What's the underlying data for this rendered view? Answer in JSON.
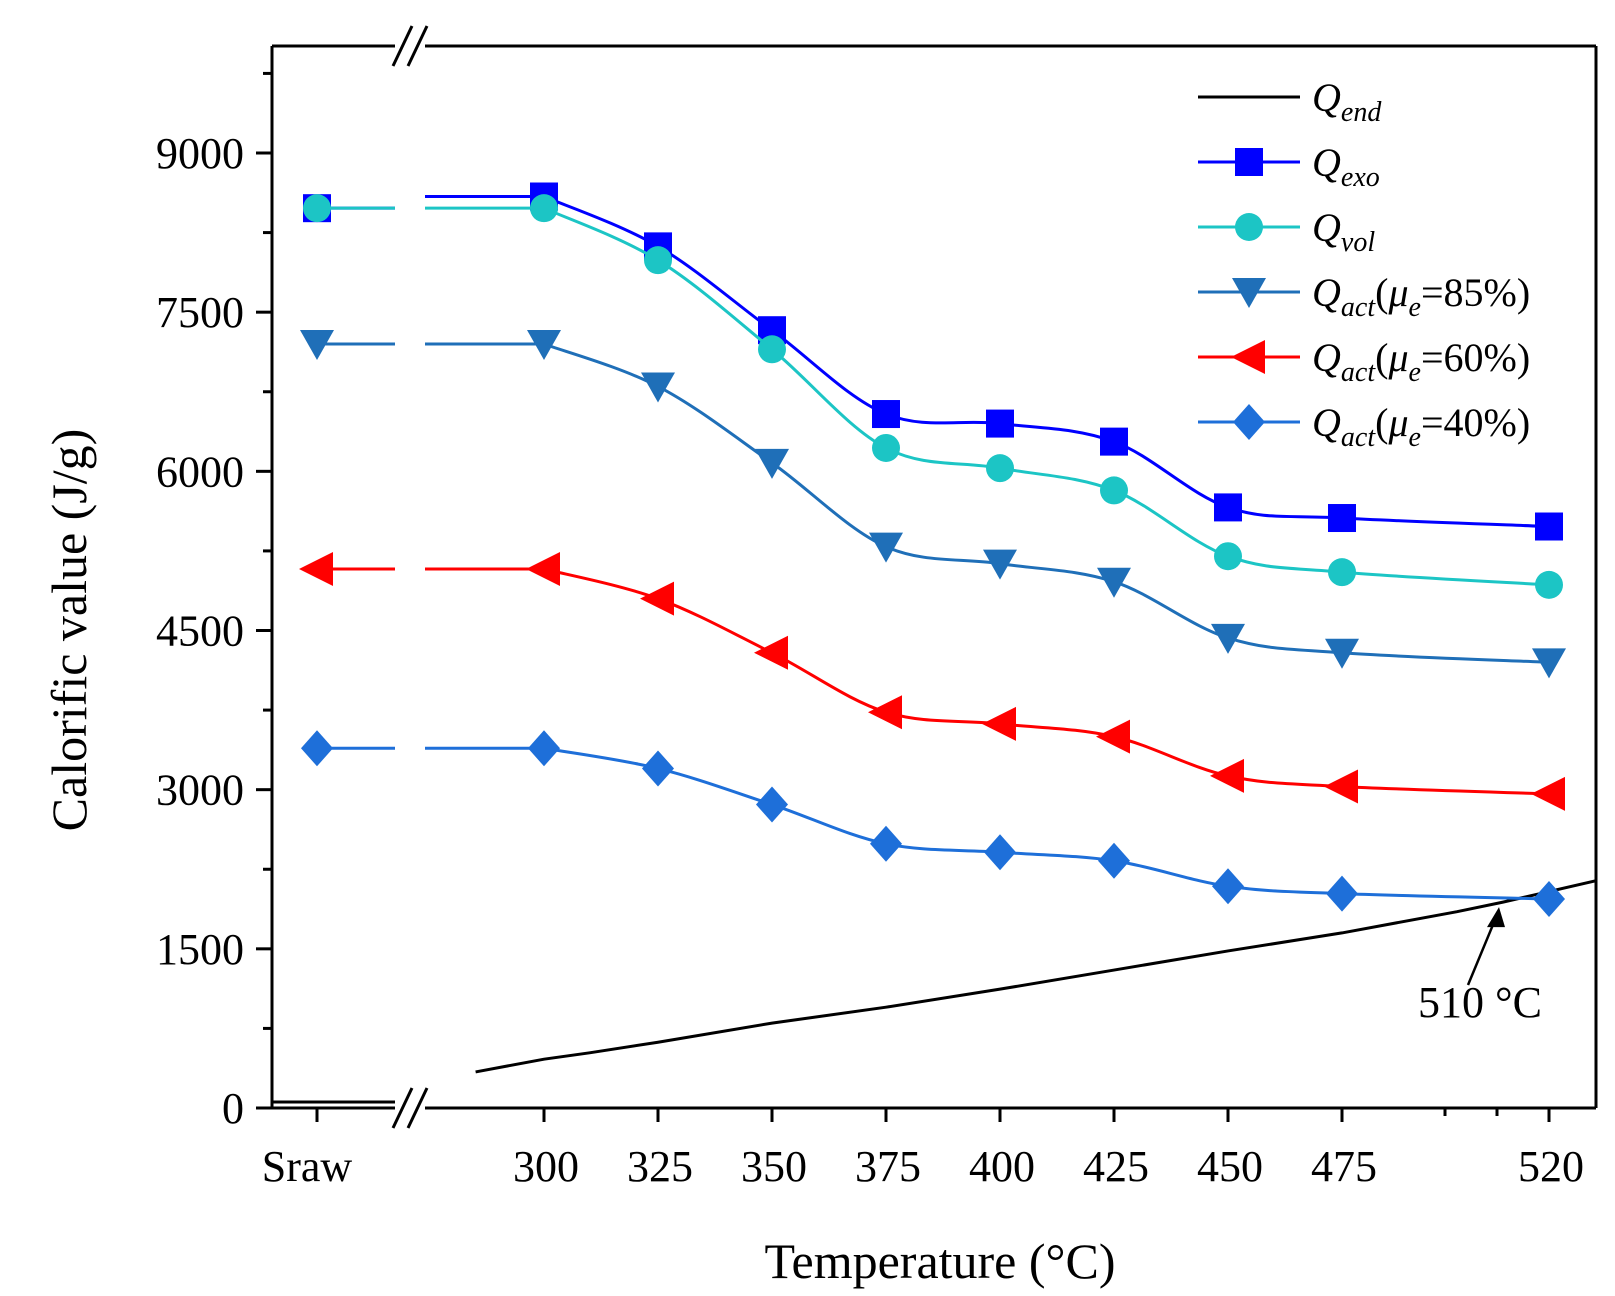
{
  "chart_data": {
    "type": "line",
    "title": "",
    "xlabel": "Temperature (°C)",
    "ylabel": "Calorific value (J/g)",
    "ylim": [
      0,
      10000
    ],
    "yticks": [
      "0",
      "1500",
      "3000",
      "4500",
      "6000",
      "7500",
      "9000"
    ],
    "xticks": [
      "Sraw",
      "300",
      "325",
      "350",
      "375",
      "400",
      "425",
      "450",
      "475",
      "520"
    ],
    "x_categories": [
      "Sraw",
      "300",
      "325",
      "350",
      "375",
      "400",
      "425",
      "450",
      "475",
      "520"
    ],
    "axis_break": "between Sraw and 300",
    "series": [
      {
        "name": "Q_end",
        "label_main": "Q",
        "label_sub": "end",
        "label_suffix": "",
        "color": "#000000",
        "marker": "none",
        "x": [
          285,
          300,
          310,
          325,
          350,
          375,
          400,
          425,
          450,
          475,
          500,
          510,
          520,
          530
        ],
        "values": [
          340,
          460,
          520,
          620,
          800,
          950,
          1120,
          1300,
          1480,
          1650,
          1850,
          1940,
          2040,
          2140
        ]
      },
      {
        "name": "Q_exo",
        "label_main": "Q",
        "label_sub": "exo",
        "label_suffix": "",
        "color": "#0000ff",
        "marker": "square",
        "values": [
          8480,
          8590,
          8120,
          7330,
          6540,
          6450,
          6280,
          5660,
          5560,
          5480
        ]
      },
      {
        "name": "Q_vol",
        "label_main": "Q",
        "label_sub": "vol",
        "label_suffix": "",
        "color": "#1cc5c5",
        "marker": "circle",
        "values": [
          8480,
          8480,
          7990,
          7150,
          6220,
          6030,
          5820,
          5200,
          5050,
          4930
        ]
      },
      {
        "name": "Q_act(μe=85%)",
        "label_main": "Q",
        "label_sub": "act",
        "label_suffix": "=85%)",
        "color": "#1f6fb8",
        "marker": "triangle-down",
        "values": [
          7200,
          7200,
          6800,
          6080,
          5290,
          5130,
          4960,
          4430,
          4290,
          4200
        ]
      },
      {
        "name": "Q_act(μe=60%)",
        "label_main": "Q",
        "label_sub": "act",
        "label_suffix": "=60%)",
        "color": "#ff0000",
        "marker": "triangle-left",
        "values": [
          5080,
          5080,
          4800,
          4290,
          3730,
          3620,
          3500,
          3130,
          3030,
          2960
        ]
      },
      {
        "name": "Q_act(μe=40%)",
        "label_main": "Q",
        "label_sub": "act",
        "label_suffix": "=40%)",
        "color": "#1e6fd9",
        "marker": "diamond",
        "values": [
          3390,
          3390,
          3200,
          2860,
          2490,
          2410,
          2330,
          2090,
          2020,
          1970
        ]
      }
    ],
    "legend_position": "top-right",
    "mu_symbol": "μ",
    "mu_sub": "e",
    "annotation": {
      "text": "510 °C",
      "points_to_x": 510
    }
  }
}
